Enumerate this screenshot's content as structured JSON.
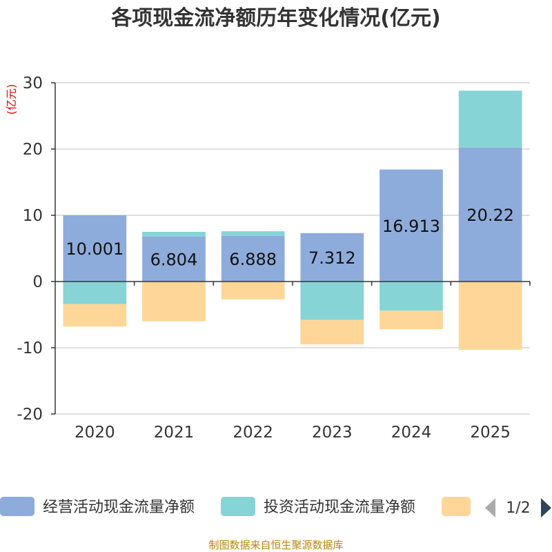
{
  "colors": {
    "operating": "#8eacdb",
    "investing": "#86d4d6",
    "financing": "#fdd698",
    "unit": "#e60000",
    "footer": "#b8860b",
    "axis": "#333333",
    "grid": "#cccccc",
    "pager_active": "#2f4554",
    "pager_inactive": "#aaaaaa"
  },
  "legend": {
    "items": [
      "经营活动现金流量净额",
      "投资活动现金流量净额",
      ""
    ],
    "page": "1/2",
    "prev_icon": "triangle-left-icon",
    "next_icon": "triangle-right-icon"
  },
  "footer": "制图数据来自恒生聚源数据库",
  "chart_data": {
    "type": "bar",
    "stacked": true,
    "title": "各项现金流净额历年变化情况(亿元)",
    "ylabel": "(亿元)",
    "xlabel": "",
    "ylim": [
      -20,
      30
    ],
    "yticks": [
      30,
      20,
      10,
      0,
      -10,
      -20
    ],
    "grid": true,
    "categories": [
      "2020",
      "2021",
      "2022",
      "2023",
      "2024",
      "2025"
    ],
    "series": [
      {
        "name": "经营活动现金流量净额",
        "values": [
          10.001,
          6.804,
          6.888,
          7.312,
          16.913,
          20.22
        ],
        "show_labels": true
      },
      {
        "name": "投资活动现金流量净额",
        "values": [
          -3.4,
          0.7,
          0.7,
          -5.8,
          -4.4,
          8.6
        ],
        "show_labels": false
      },
      {
        "name": "",
        "values": [
          -3.4,
          -6.0,
          -2.7,
          -3.7,
          -2.8,
          -10.3
        ],
        "show_labels": false
      }
    ]
  }
}
